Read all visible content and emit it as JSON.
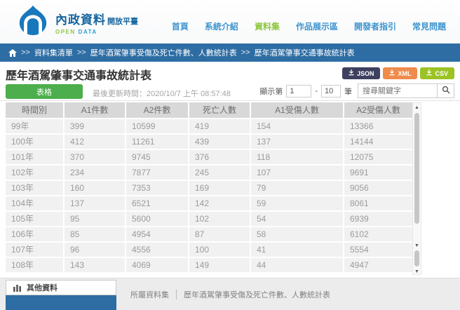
{
  "header": {
    "logo": {
      "title": "內政資料",
      "subtitle": "開放平臺",
      "tagline_open": "OPEN",
      "tagline_data": "DATA"
    },
    "nav": [
      {
        "label": "首頁",
        "active": false
      },
      {
        "label": "系統介紹",
        "active": false
      },
      {
        "label": "資料集",
        "active": true
      },
      {
        "label": "作品展示區",
        "active": false
      },
      {
        "label": "開發者指引",
        "active": false
      },
      {
        "label": "常見問題",
        "active": false
      }
    ]
  },
  "breadcrumb": {
    "separator": ">>",
    "items": [
      "資料集清單",
      "歷年酒駕肇事受傷及死亡件數、人數統計表",
      "歷年酒駕肇事交通事故統計表"
    ]
  },
  "page": {
    "title": "歷年酒駕肇事交通事故統計表"
  },
  "export_buttons": [
    {
      "label": "JSON",
      "color": "#3d415f"
    },
    {
      "label": "XML",
      "color": "#ef8c4c"
    },
    {
      "label": "CSV",
      "color": "#9cc326"
    }
  ],
  "controls": {
    "view_tab_label": "表格",
    "last_updated": "最後更新時間：2020/10/7 上午 08:57:48",
    "range_prefix": "顯示第",
    "range_from": "1",
    "range_dash": "-",
    "range_to": "10",
    "range_suffix": "筆",
    "search_placeholder": "搜尋關鍵字"
  },
  "table": {
    "columns": [
      "時間別",
      "A1件數",
      "A2件數",
      "死亡人數",
      "A1受傷人數",
      "A2受傷人數"
    ],
    "rows": [
      [
        "99年",
        "399",
        "10599",
        "419",
        "154",
        "13366"
      ],
      [
        "100年",
        "412",
        "11261",
        "439",
        "137",
        "14144"
      ],
      [
        "101年",
        "370",
        "9745",
        "376",
        "118",
        "12075"
      ],
      [
        "102年",
        "234",
        "7877",
        "245",
        "107",
        "9691"
      ],
      [
        "103年",
        "160",
        "7353",
        "169",
        "79",
        "9056"
      ],
      [
        "104年",
        "137",
        "6521",
        "142",
        "59",
        "8061"
      ],
      [
        "105年",
        "95",
        "5600",
        "102",
        "54",
        "6939"
      ],
      [
        "106年",
        "85",
        "4954",
        "87",
        "58",
        "6102"
      ],
      [
        "107年",
        "96",
        "4556",
        "100",
        "41",
        "5554"
      ],
      [
        "108年",
        "143",
        "4069",
        "149",
        "44",
        "4947"
      ]
    ]
  },
  "footer": {
    "other_tab_label": "其他資料",
    "dataset_label": "所屬資料集",
    "dataset_name": "歷年酒駕肇事受傷及死亡件數、人數統計表"
  },
  "colors": {
    "breadcrumb_blue": "#2e6da4",
    "nav_link_blue": "#3e94cf",
    "active_green": "#8dc63f",
    "json_button": "#3d415f",
    "xml_button": "#ef8c4c",
    "csv_button": "#9cc326",
    "table_tab_green": "#4cae4c",
    "logo_blue": "#1878bd",
    "table_header_bg": "#d8d8d8",
    "table_row_bg": "#f1f1f1"
  }
}
